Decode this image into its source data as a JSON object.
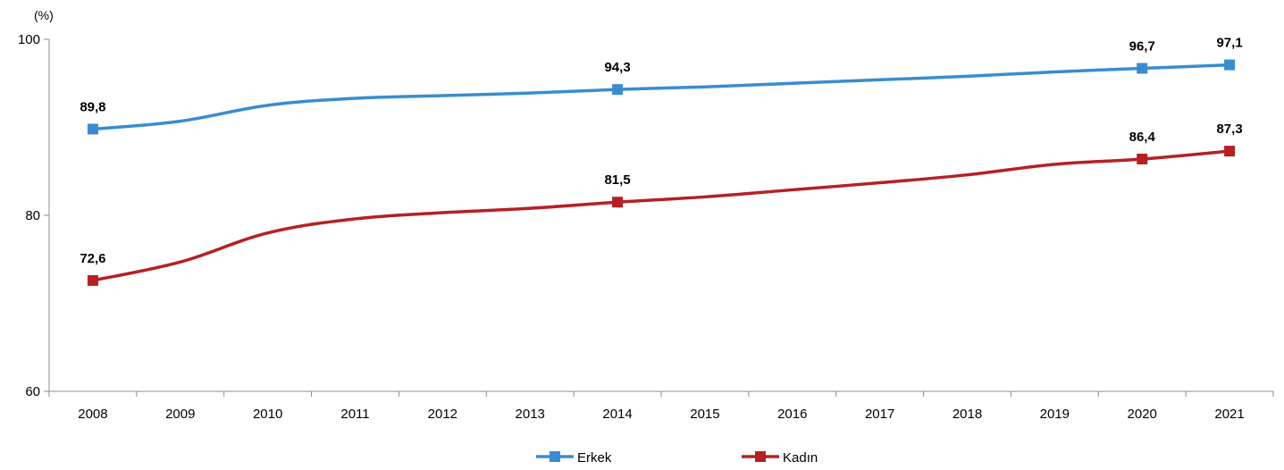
{
  "chart_data": {
    "type": "line",
    "unit_label": "(%)",
    "x": [
      "2008",
      "2009",
      "2010",
      "2011",
      "2012",
      "2013",
      "2014",
      "2015",
      "2016",
      "2017",
      "2018",
      "2019",
      "2020",
      "2021"
    ],
    "ylim": [
      60,
      100
    ],
    "yticks": [
      "60",
      "80",
      "100"
    ],
    "grid": false,
    "legend_position": "bottom",
    "series": [
      {
        "name": "Erkek",
        "color": "#3a8ccf",
        "values": [
          89.8,
          90.7,
          92.5,
          93.3,
          93.6,
          93.9,
          94.3,
          94.6,
          95.0,
          95.4,
          95.8,
          96.3,
          96.7,
          97.1
        ],
        "marked_points": [
          {
            "index": 0,
            "label": "89,8"
          },
          {
            "index": 6,
            "label": "94,3"
          },
          {
            "index": 12,
            "label": "96,7"
          },
          {
            "index": 13,
            "label": "97,1"
          }
        ]
      },
      {
        "name": "Kadın",
        "color": "#b52025",
        "values": [
          72.6,
          74.7,
          78.0,
          79.6,
          80.3,
          80.8,
          81.5,
          82.1,
          82.9,
          83.7,
          84.6,
          85.8,
          86.4,
          87.3
        ],
        "marked_points": [
          {
            "index": 0,
            "label": "72,6"
          },
          {
            "index": 6,
            "label": "81,5"
          },
          {
            "index": 12,
            "label": "86,4"
          },
          {
            "index": 13,
            "label": "87,3"
          }
        ]
      }
    ]
  }
}
